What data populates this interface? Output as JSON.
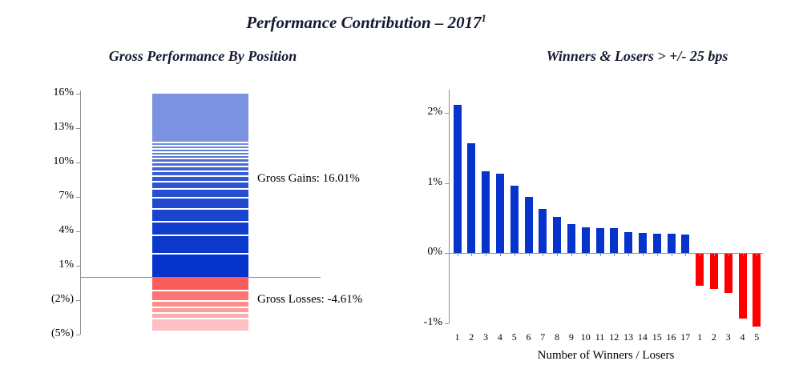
{
  "header": {
    "title": "Performance Contribution – 2017",
    "footnote_marker": "1"
  },
  "colors": {
    "axis": "#8f8f8f",
    "title_text": "#141a33",
    "positive_blue": "#0533CB",
    "negative_red": "#FF0000",
    "light_blue_block": "#7A92DF",
    "light_pink_block": "#FDBFC3"
  },
  "chart_data": [
    {
      "type": "bar",
      "subtype": "single-stacked-column",
      "title": "Gross Performance By Position",
      "ylim": [
        -5,
        16.3
      ],
      "grid": false,
      "ytick_values": [
        16,
        13,
        10,
        7,
        4,
        1,
        -2,
        -5
      ],
      "ytick_labels": [
        "16%",
        "13%",
        "10%",
        "7%",
        "4%",
        "1%",
        "(2%)",
        "(5%)"
      ],
      "annotations": [
        {
          "text": "Gross Gains: 16.01%",
          "value": 16.01
        },
        {
          "text": "Gross Losses: -4.61%",
          "value": -4.61
        }
      ],
      "totals": {
        "gross_gains_pct": 16.01,
        "gross_losses_pct": -4.61
      },
      "positive_segments_top_to_bottom": [
        {
          "value": 4.22,
          "color": "#7A92DF"
        },
        {
          "value": 0.26,
          "color": "#718CDC"
        },
        {
          "value": 0.27,
          "color": "#6A86DB"
        },
        {
          "value": 0.28,
          "color": "#6481DA"
        },
        {
          "value": 0.29,
          "color": "#5D7BD9"
        },
        {
          "value": 0.3,
          "color": "#5676D8"
        },
        {
          "value": 0.36,
          "color": "#4F70D7"
        },
        {
          "value": 0.36,
          "color": "#496BD6"
        },
        {
          "value": 0.37,
          "color": "#4265D5"
        },
        {
          "value": 0.41,
          "color": "#3B5FD3"
        },
        {
          "value": 0.52,
          "color": "#345AD2"
        },
        {
          "value": 0.63,
          "color": "#2E54D1"
        },
        {
          "value": 0.8,
          "color": "#274FD0"
        },
        {
          "value": 0.96,
          "color": "#2049CF"
        },
        {
          "value": 1.13,
          "color": "#1944CE"
        },
        {
          "value": 1.17,
          "color": "#133ECD"
        },
        {
          "value": 1.57,
          "color": "#0C39CC"
        },
        {
          "value": 2.11,
          "color": "#0533CB"
        }
      ],
      "negative_segments_top_to_bottom": [
        {
          "value": 1.04,
          "color": "#FB5C5C"
        },
        {
          "value": 0.93,
          "color": "#FC7474"
        },
        {
          "value": 0.56,
          "color": "#FD8E8E"
        },
        {
          "value": 0.5,
          "color": "#FD9D9D"
        },
        {
          "value": 0.46,
          "color": "#FDACAC"
        },
        {
          "value": 1.12,
          "color": "#FDBFC3"
        }
      ]
    },
    {
      "type": "bar",
      "title": "Winners & Losers > +/- 25 bps",
      "xlabel": "Number of Winners / Losers",
      "categories": [
        "1",
        "2",
        "3",
        "4",
        "5",
        "6",
        "7",
        "8",
        "9",
        "10",
        "11",
        "12",
        "13",
        "14",
        "15",
        "16",
        "17",
        "1",
        "2",
        "3",
        "4",
        "5"
      ],
      "values": [
        2.11,
        1.57,
        1.17,
        1.13,
        0.96,
        0.8,
        0.63,
        0.52,
        0.41,
        0.37,
        0.36,
        0.36,
        0.3,
        0.29,
        0.28,
        0.27,
        0.26,
        -0.46,
        -0.5,
        -0.56,
        -0.93,
        -1.04
      ],
      "ytick_values": [
        2,
        1,
        0,
        -1
      ],
      "ytick_labels": [
        "2%",
        "1%",
        "0%",
        "-1%"
      ],
      "ylim": [
        -1.1,
        2.35
      ],
      "positive_color": "#0533CB",
      "negative_color": "#FF0000",
      "legend": "none"
    }
  ]
}
